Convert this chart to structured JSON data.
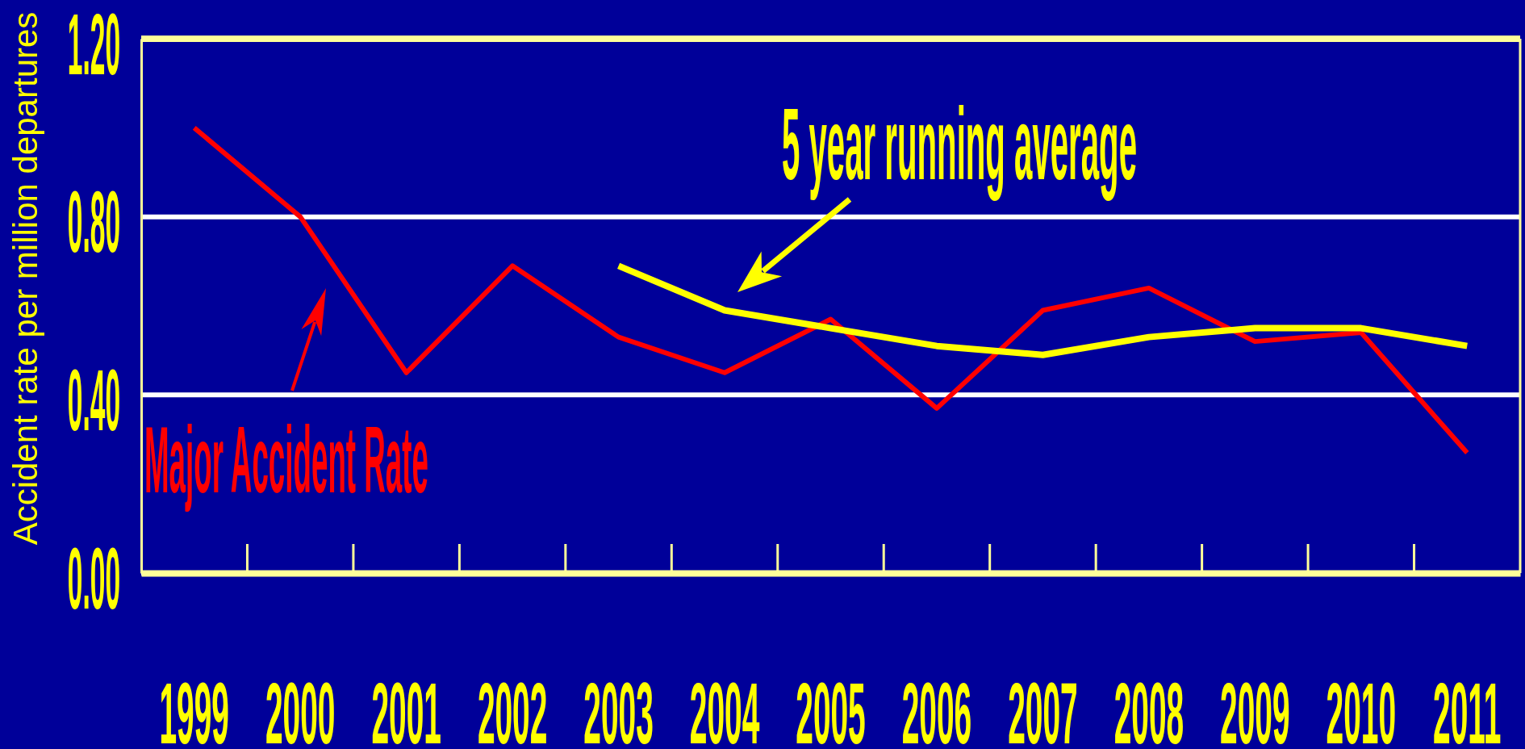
{
  "chart_data": {
    "type": "line",
    "categories": [
      "1999",
      "2000",
      "2001",
      "2002",
      "2003",
      "2004",
      "2005",
      "2006",
      "2007",
      "2008",
      "2009",
      "2010",
      "2011"
    ],
    "ylabel": "Accident rate per million departures",
    "ylim": [
      0,
      1.2
    ],
    "yticks": [
      {
        "value": 0,
        "label": "0.00"
      },
      {
        "value": 0.4,
        "label": "0.40"
      },
      {
        "value": 0.8,
        "label": "0.80"
      },
      {
        "value": 1.2,
        "label": "1.20"
      }
    ],
    "grid": "y",
    "series": [
      {
        "name": "Major Accident Rate",
        "color": "#ff0000",
        "values": [
          1.0,
          0.8,
          0.45,
          0.69,
          0.53,
          0.45,
          0.57,
          0.37,
          0.59,
          0.64,
          0.52,
          0.54,
          0.27
        ]
      },
      {
        "name": "5 year running average",
        "color": "#ffff00",
        "values": [
          null,
          null,
          null,
          null,
          0.69,
          0.59,
          0.55,
          0.51,
          0.49,
          0.53,
          0.55,
          0.55,
          0.51
        ]
      }
    ]
  }
}
